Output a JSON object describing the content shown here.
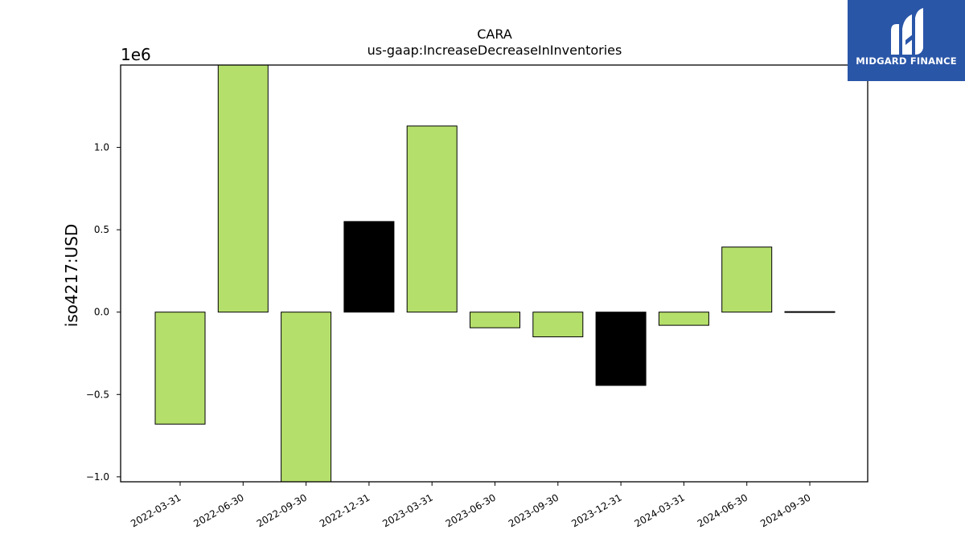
{
  "chart_data": {
    "type": "bar",
    "title": "CARA",
    "subtitle": "us-gaap:IncreaseDecreaseInInventories",
    "ylabel": "iso4217:USD",
    "xlabel": "",
    "scale_label": "1e6",
    "categories": [
      "2022-03-31",
      "2022-06-30",
      "2022-09-30",
      "2022-12-31",
      "2023-03-31",
      "2023-06-30",
      "2023-09-30",
      "2023-12-31",
      "2024-03-31",
      "2024-06-30",
      "2024-09-30"
    ],
    "values": [
      -680000,
      1500000,
      -1030000,
      550000,
      1130000,
      -95000,
      -150000,
      -445000,
      -80000,
      395000,
      3000
    ],
    "bar_colors": [
      "#b5df6b",
      "#b5df6b",
      "#b5df6b",
      "#000000",
      "#b5df6b",
      "#b5df6b",
      "#b5df6b",
      "#000000",
      "#b5df6b",
      "#b5df6b",
      "#000000"
    ],
    "yticks": [
      -1.0,
      -0.5,
      0.0,
      0.5,
      1.0
    ],
    "ytick_labels": [
      "−1.0",
      "−0.5",
      "0.0",
      "0.5",
      "1.0"
    ],
    "ylim": [
      -1030000,
      1500000
    ],
    "grid": false,
    "legend": "none"
  },
  "logo": {
    "text": "MIDGARD FINANCE",
    "background": "#2a56a8",
    "icon": "midgard-m-logo-icon"
  }
}
